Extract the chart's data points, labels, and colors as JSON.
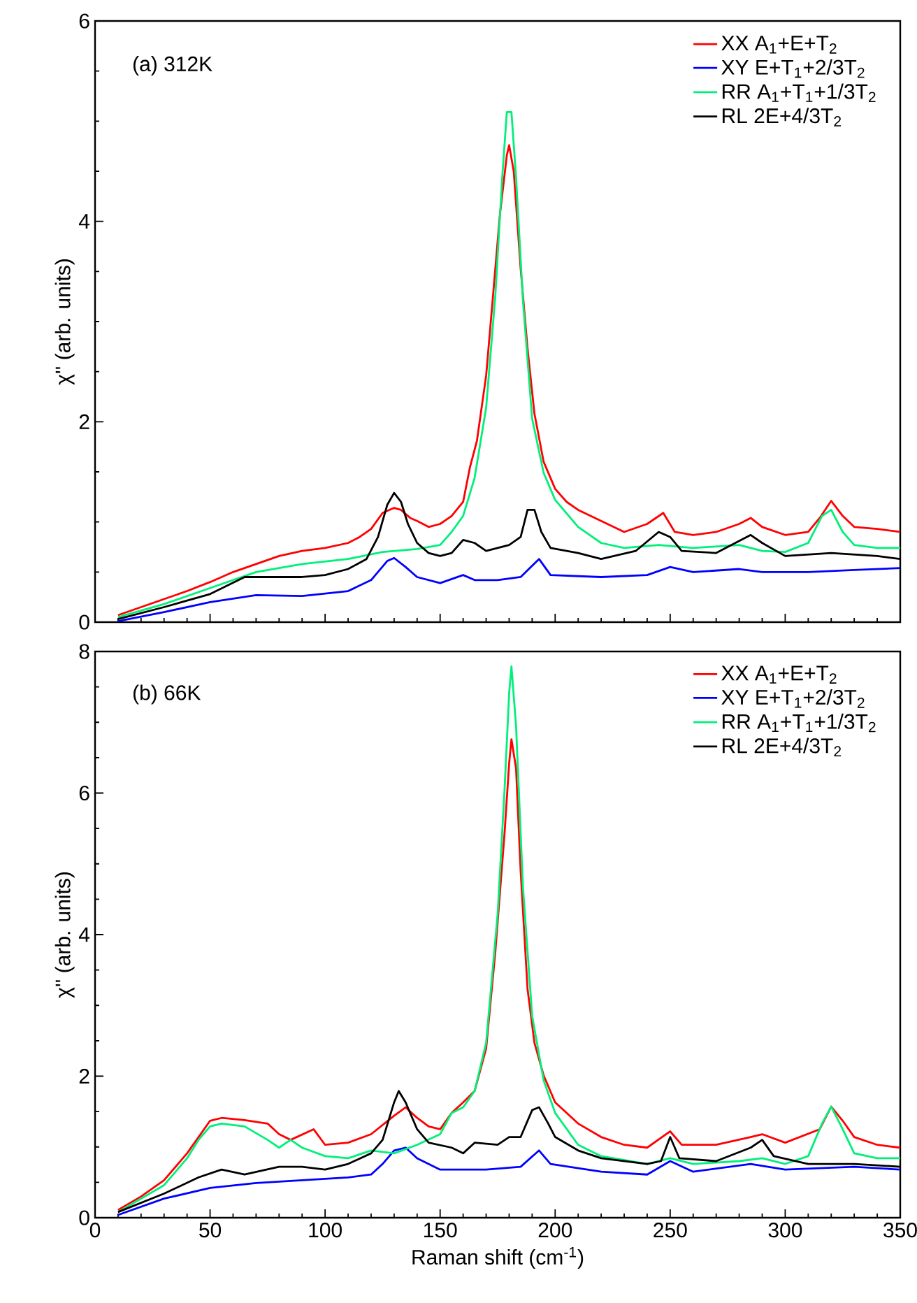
{
  "chart_data": [
    {
      "type": "line",
      "ylabel": "χ'' (arb. units)",
      "annotations": [
        "(a) 312K"
      ],
      "xlim": [
        0,
        350
      ],
      "xticks": [
        0,
        50,
        100,
        150,
        200,
        250,
        300,
        350
      ],
      "ylim": [
        0,
        6
      ],
      "yticks": [
        0,
        2,
        4,
        6
      ],
      "tick_labels": "y",
      "legend": "top right",
      "series": [
        {
          "name": "XX A$_{1}$+E+T$_{2}$",
          "color": "#ff0000",
          "x": [
            10,
            20,
            30,
            40,
            50,
            60,
            70,
            80,
            90,
            100,
            110,
            115,
            120,
            125,
            130,
            133,
            137,
            140,
            145,
            150,
            155,
            160,
            163,
            166,
            170,
            173,
            176,
            179,
            180,
            182,
            185,
            188,
            191,
            195,
            200,
            205,
            210,
            220,
            230,
            240,
            247,
            252,
            260,
            270,
            280,
            285,
            290,
            300,
            310,
            315,
            320,
            325,
            330,
            340,
            350
          ],
          "values": [
            0.07,
            0.15,
            0.23,
            0.31,
            0.4,
            0.5,
            0.58,
            0.66,
            0.71,
            0.74,
            0.79,
            0.85,
            0.93,
            1.09,
            1.14,
            1.12,
            1.04,
            1.01,
            0.95,
            0.98,
            1.06,
            1.2,
            1.55,
            1.81,
            2.46,
            3.26,
            4.07,
            4.66,
            4.76,
            4.5,
            3.53,
            2.73,
            2.08,
            1.6,
            1.33,
            1.2,
            1.12,
            1.01,
            0.9,
            0.98,
            1.09,
            0.9,
            0.87,
            0.9,
            0.98,
            1.04,
            0.95,
            0.87,
            0.9,
            1.04,
            1.21,
            1.06,
            0.95,
            0.93,
            0.9
          ]
        },
        {
          "name": "XY E+T$_{1}$+2/3T$_{2}$",
          "color": "#0000ff",
          "x": [
            10,
            30,
            50,
            70,
            90,
            110,
            120,
            127,
            130,
            135,
            140,
            150,
            160,
            165,
            175,
            185,
            193,
            198,
            220,
            240,
            250,
            260,
            280,
            290,
            310,
            330,
            350
          ],
          "values": [
            0.01,
            0.1,
            0.2,
            0.27,
            0.26,
            0.31,
            0.42,
            0.61,
            0.64,
            0.55,
            0.45,
            0.39,
            0.47,
            0.42,
            0.42,
            0.45,
            0.63,
            0.47,
            0.45,
            0.47,
            0.55,
            0.5,
            0.53,
            0.5,
            0.5,
            0.52,
            0.54
          ]
        },
        {
          "name": "RR A$_{1}$+T$_{1}$+1/3T$_{2}$",
          "color": "#00f07a",
          "x": [
            10,
            30,
            50,
            70,
            90,
            110,
            125,
            140,
            150,
            155,
            160,
            165,
            170,
            174,
            177,
            179,
            181,
            183,
            186,
            190,
            195,
            200,
            210,
            220,
            230,
            245,
            260,
            280,
            290,
            300,
            310,
            316,
            320,
            325,
            330,
            340,
            350
          ],
          "values": [
            0.05,
            0.18,
            0.34,
            0.5,
            0.58,
            0.63,
            0.7,
            0.73,
            0.77,
            0.9,
            1.06,
            1.44,
            2.14,
            3.26,
            4.44,
            5.09,
            5.09,
            4.44,
            3.21,
            2.03,
            1.49,
            1.22,
            0.95,
            0.79,
            0.74,
            0.77,
            0.74,
            0.77,
            0.71,
            0.7,
            0.79,
            1.06,
            1.12,
            0.9,
            0.77,
            0.74,
            0.74
          ]
        },
        {
          "name": "RL 2E+4/3T$_{2}$",
          "color": "#000000",
          "x": [
            10,
            30,
            50,
            65,
            75,
            90,
            100,
            110,
            118,
            123,
            127,
            130,
            133,
            136,
            140,
            145,
            150,
            155,
            160,
            165,
            170,
            175,
            180,
            185,
            188,
            191,
            194,
            198,
            210,
            220,
            235,
            245,
            250,
            255,
            270,
            285,
            290,
            300,
            320,
            340,
            350
          ],
          "values": [
            0.03,
            0.15,
            0.28,
            0.45,
            0.45,
            0.45,
            0.47,
            0.53,
            0.63,
            0.85,
            1.17,
            1.29,
            1.2,
            0.98,
            0.79,
            0.69,
            0.66,
            0.69,
            0.82,
            0.79,
            0.71,
            0.74,
            0.77,
            0.85,
            1.12,
            1.12,
            0.9,
            0.74,
            0.69,
            0.63,
            0.71,
            0.9,
            0.85,
            0.71,
            0.69,
            0.87,
            0.79,
            0.66,
            0.69,
            0.66,
            0.63
          ]
        }
      ]
    },
    {
      "type": "line",
      "xlabel": "Raman shift (cm$^{-1}$)",
      "ylabel": "χ'' (arb. units)",
      "annotations": [
        "(b) 66K"
      ],
      "xlim": [
        0,
        350
      ],
      "xticks": [
        0,
        50,
        100,
        150,
        200,
        250,
        300,
        350
      ],
      "ylim": [
        0,
        8
      ],
      "yticks": [
        0,
        2,
        4,
        6,
        8
      ],
      "legend": "top right",
      "series": [
        {
          "name": "XX A$_{1}$+E+T$_{2}$",
          "color": "#ff0000",
          "x": [
            10,
            20,
            30,
            40,
            45,
            50,
            55,
            65,
            75,
            80,
            85,
            95,
            100,
            110,
            120,
            130,
            135,
            140,
            145,
            150,
            155,
            160,
            165,
            170,
            174,
            178,
            180,
            181,
            183,
            185,
            188,
            191,
            195,
            200,
            210,
            220,
            230,
            240,
            250,
            255,
            270,
            285,
            290,
            300,
            315,
            320,
            325,
            330,
            340,
            350
          ],
          "values": [
            0.11,
            0.3,
            0.53,
            0.91,
            1.14,
            1.37,
            1.41,
            1.38,
            1.33,
            1.18,
            1.1,
            1.25,
            1.03,
            1.06,
            1.18,
            1.44,
            1.56,
            1.41,
            1.29,
            1.25,
            1.48,
            1.63,
            1.79,
            2.39,
            3.76,
            5.43,
            6.42,
            6.76,
            6.35,
            4.9,
            3.23,
            2.47,
            2.01,
            1.63,
            1.33,
            1.14,
            1.03,
            0.99,
            1.22,
            1.03,
            1.03,
            1.14,
            1.18,
            1.06,
            1.25,
            1.57,
            1.37,
            1.14,
            1.03,
            0.99
          ]
        },
        {
          "name": "XY E+T$_{1}$+2/3T$_{2}$",
          "color": "#0000ff",
          "x": [
            10,
            30,
            50,
            70,
            90,
            110,
            120,
            125,
            130,
            135,
            140,
            150,
            170,
            185,
            193,
            198,
            220,
            240,
            250,
            260,
            285,
            300,
            330,
            350
          ],
          "values": [
            0.04,
            0.27,
            0.42,
            0.49,
            0.53,
            0.57,
            0.61,
            0.76,
            0.95,
            0.99,
            0.84,
            0.68,
            0.68,
            0.72,
            0.95,
            0.76,
            0.65,
            0.61,
            0.8,
            0.65,
            0.76,
            0.68,
            0.72,
            0.68
          ]
        },
        {
          "name": "RR A$_{1}$+T$_{1}$+1/3T$_{2}$",
          "color": "#00f07a",
          "x": [
            10,
            30,
            40,
            45,
            50,
            55,
            65,
            75,
            80,
            85,
            90,
            100,
            110,
            120,
            130,
            140,
            150,
            155,
            160,
            165,
            170,
            175,
            178,
            180,
            181,
            183,
            186,
            190,
            195,
            200,
            210,
            220,
            240,
            250,
            260,
            280,
            290,
            300,
            310,
            316,
            320,
            325,
            330,
            340,
            350
          ],
          "values": [
            0.08,
            0.46,
            0.84,
            1.1,
            1.29,
            1.33,
            1.29,
            1.1,
            0.99,
            1.1,
            0.99,
            0.87,
            0.84,
            0.95,
            0.91,
            1.03,
            1.18,
            1.48,
            1.56,
            1.79,
            2.47,
            4.29,
            6.04,
            7.41,
            7.79,
            6.95,
            4.67,
            2.85,
            1.94,
            1.48,
            1.03,
            0.87,
            0.76,
            0.84,
            0.76,
            0.8,
            0.84,
            0.76,
            0.87,
            1.33,
            1.57,
            1.25,
            0.91,
            0.84,
            0.84
          ]
        },
        {
          "name": "RL 2E+4/3T$_{2}$",
          "color": "#000000",
          "x": [
            10,
            30,
            45,
            55,
            65,
            80,
            90,
            100,
            110,
            120,
            125,
            130,
            132,
            135,
            140,
            145,
            155,
            160,
            165,
            175,
            180,
            185,
            190,
            193,
            197,
            200,
            210,
            220,
            240,
            246,
            250,
            254,
            270,
            285,
            290,
            295,
            310,
            330,
            350
          ],
          "values": [
            0.08,
            0.34,
            0.57,
            0.68,
            0.61,
            0.72,
            0.72,
            0.68,
            0.76,
            0.91,
            1.1,
            1.63,
            1.79,
            1.63,
            1.25,
            1.06,
            0.99,
            0.91,
            1.06,
            1.03,
            1.14,
            1.14,
            1.52,
            1.56,
            1.33,
            1.14,
            0.95,
            0.84,
            0.76,
            0.8,
            1.14,
            0.84,
            0.8,
            0.99,
            1.1,
            0.87,
            0.76,
            0.76,
            0.72
          ]
        }
      ]
    }
  ]
}
